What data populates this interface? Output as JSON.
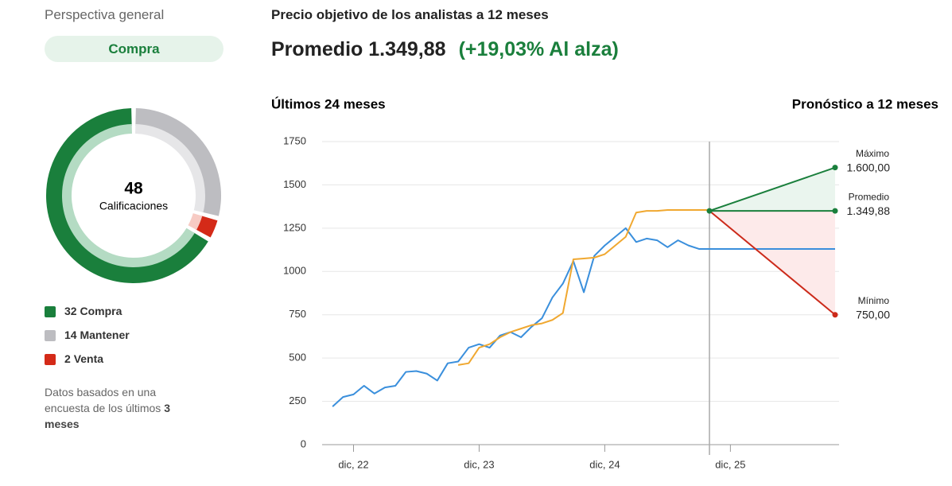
{
  "overview": {
    "title": "Perspectiva general",
    "rating": "Compra",
    "note": "Datos basados en una encuesta de los últimos ",
    "note_bold": "3 meses"
  },
  "header": {
    "title": "Precio objetivo de los analistas a 12 meses",
    "average": "Promedio 1.349,88",
    "change": "(+19,03% Al alza)"
  },
  "chart_data": [
    {
      "type": "donut",
      "total": 48,
      "center_label": "Calificaciones",
      "start_angle": 120,
      "categories": [
        "Compra",
        "Mantener",
        "Venta"
      ],
      "values": [
        32,
        14,
        2
      ],
      "colors": [
        "#1a7f3c",
        "#bdbdc1",
        "#d42a18"
      ],
      "inner_colors": [
        "#b4dbc3",
        "#e6e6e8",
        "#f7cbc4"
      ]
    },
    {
      "type": "line",
      "left_label": "Últimos 24 meses",
      "right_label": "Pronóstico a 12 meses",
      "xlim": [
        "2022-09",
        "2026-10"
      ],
      "ylim": [
        0,
        1750
      ],
      "yticks": [
        0,
        250,
        500,
        750,
        1000,
        1250,
        1500,
        1750
      ],
      "grid": true,
      "xticks": [
        {
          "value": "2022-12",
          "label": "dic, 22"
        },
        {
          "value": "2023-12",
          "label": "dic, 23"
        },
        {
          "value": "2024-12",
          "label": "dic, 24"
        },
        {
          "value": "2025-12",
          "label": "dic, 25"
        }
      ],
      "divider_x": "2025-10",
      "series": [
        {
          "color": "#3a8fdc",
          "x": [
            "2022-10",
            "2022-11",
            "2022-12",
            "2023-01",
            "2023-02",
            "2023-03",
            "2023-04",
            "2023-05",
            "2023-06",
            "2023-07",
            "2023-08",
            "2023-09",
            "2023-10",
            "2023-11",
            "2023-12",
            "2024-01",
            "2024-02",
            "2024-03",
            "2024-04",
            "2024-05",
            "2024-06",
            "2024-07",
            "2024-08",
            "2024-09",
            "2024-10",
            "2024-11",
            "2024-12",
            "2025-01",
            "2025-02",
            "2025-03",
            "2025-04",
            "2025-05",
            "2025-06",
            "2025-07",
            "2025-08",
            "2025-09",
            "2025-10",
            "2026-10"
          ],
          "values": [
            220,
            275,
            290,
            340,
            295,
            330,
            340,
            420,
            425,
            410,
            370,
            470,
            480,
            560,
            580,
            560,
            630,
            650,
            620,
            680,
            730,
            850,
            930,
            1060,
            880,
            1090,
            1150,
            1200,
            1250,
            1170,
            1190,
            1180,
            1140,
            1180,
            1150,
            1130,
            1130,
            1130
          ]
        },
        {
          "color": "#f0a830",
          "x": [
            "2023-10",
            "2023-11",
            "2023-12",
            "2024-01",
            "2024-02",
            "2024-03",
            "2024-04",
            "2024-05",
            "2024-06",
            "2024-07",
            "2024-08",
            "2024-09",
            "2024-10",
            "2024-11",
            "2024-12",
            "2025-01",
            "2025-02",
            "2025-03",
            "2025-04",
            "2025-05",
            "2025-06",
            "2025-07",
            "2025-08",
            "2025-09",
            "2025-10"
          ],
          "values": [
            460,
            470,
            560,
            580,
            620,
            650,
            670,
            690,
            700,
            720,
            760,
            1070,
            1075,
            1080,
            1100,
            1150,
            1200,
            1340,
            1350,
            1350,
            1355,
            1355,
            1355,
            1355,
            1355
          ]
        }
      ],
      "forecast": {
        "x": [
          "2025-10",
          "2026-10"
        ],
        "start": 1349.88,
        "targets": [
          {
            "name": "Máximo",
            "value": 1600,
            "value_label": "1.600,00",
            "color": "#1a7f3c"
          },
          {
            "name": "Promedio",
            "value": 1349.88,
            "value_label": "1.349,88",
            "color": "#1a7f3c"
          },
          {
            "name": "Mínimo",
            "value": 750,
            "value_label": "750,00",
            "color": "#cc2a1a"
          }
        ],
        "fills": [
          "#eaf5ee",
          "#fdeaea"
        ]
      }
    }
  ]
}
